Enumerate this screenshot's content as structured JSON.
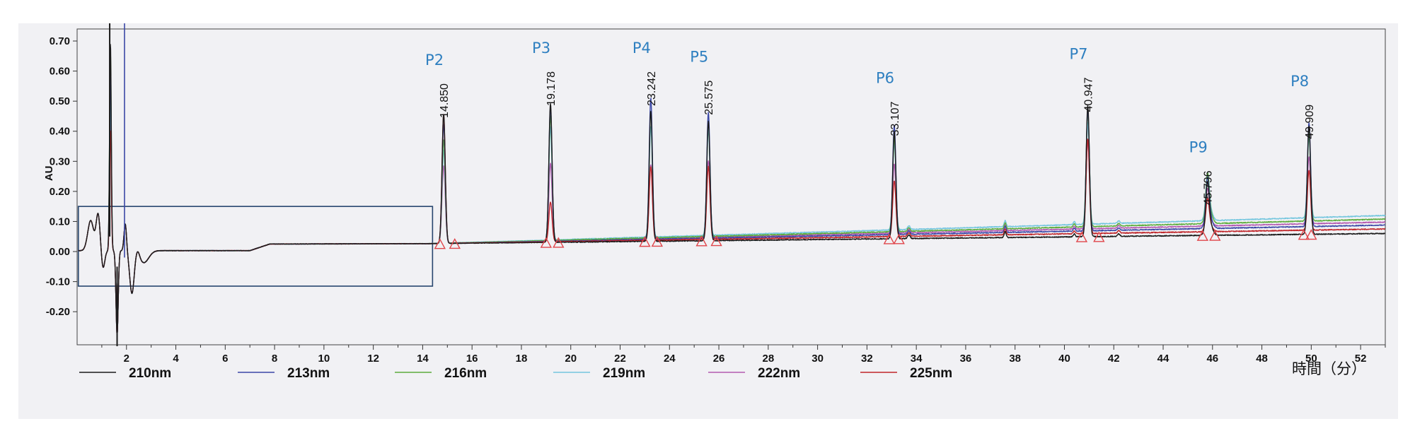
{
  "chart_data": {
    "type": "line",
    "ylabel": "AU",
    "xlabel": "時間（分）",
    "xlim": [
      0.0,
      53.0
    ],
    "ylim": [
      -0.31,
      0.74
    ],
    "x_ticks": [
      2,
      4,
      6,
      8,
      10,
      12,
      14,
      16,
      18,
      20,
      22,
      24,
      26,
      28,
      30,
      32,
      34,
      36,
      38,
      40,
      42,
      44,
      46,
      48,
      50,
      52
    ],
    "y_ticks": [
      -0.2,
      -0.1,
      0.0,
      0.1,
      0.2,
      0.3,
      0.4,
      0.5,
      0.6,
      0.7
    ],
    "y_tick_labels": [
      "-0.20",
      "-0.10",
      "0.00",
      "0.10",
      "0.20",
      "0.30",
      "0.40",
      "0.50",
      "0.60",
      "0.70"
    ],
    "series": [
      {
        "name": "210nm",
        "color": "#1b1b1b",
        "baseline_end": 0.06
      },
      {
        "name": "213nm",
        "color": "#3a47a6",
        "baseline_end": 0.088
      },
      {
        "name": "216nm",
        "color": "#5cac3c",
        "baseline_end": 0.108
      },
      {
        "name": "219nm",
        "color": "#74c6de",
        "baseline_end": 0.12
      },
      {
        "name": "222nm",
        "color": "#b45ab0",
        "baseline_end": 0.098
      },
      {
        "name": "225nm",
        "color": "#c0262a",
        "baseline_end": 0.075
      }
    ],
    "peaks": [
      {
        "label": "P2",
        "rt": "14.850",
        "x": 14.85,
        "height": 0.43
      },
      {
        "label": "P3",
        "rt": "19.178",
        "x": 19.178,
        "height": 0.47
      },
      {
        "label": "P4",
        "rt": "23.242",
        "x": 23.242,
        "height": 0.47
      },
      {
        "label": "P5",
        "rt": "25.575",
        "x": 25.575,
        "height": 0.44
      },
      {
        "label": "P6",
        "rt": "33.107",
        "x": 33.107,
        "height": 0.37
      },
      {
        "label": "P7",
        "rt": "40.947",
        "x": 40.947,
        "height": 0.45
      },
      {
        "label": "P9",
        "rt": "45.796",
        "x": 45.796,
        "height": 0.14
      },
      {
        "label": "P8",
        "rt": "49.909",
        "x": 49.909,
        "height": 0.36
      }
    ],
    "integration_markers": [
      [
        14.7,
        15.3
      ],
      [
        19.0,
        19.5
      ],
      [
        23.0,
        23.5
      ],
      [
        25.3,
        25.9
      ],
      [
        32.9,
        33.3
      ],
      [
        40.7,
        41.4
      ],
      [
        45.6,
        46.1
      ],
      [
        49.7,
        50.0
      ]
    ],
    "highlight_box": {
      "x": [
        0.05,
        14.4
      ],
      "y": [
        -0.115,
        0.15
      ]
    },
    "legend_position": "bottom"
  }
}
